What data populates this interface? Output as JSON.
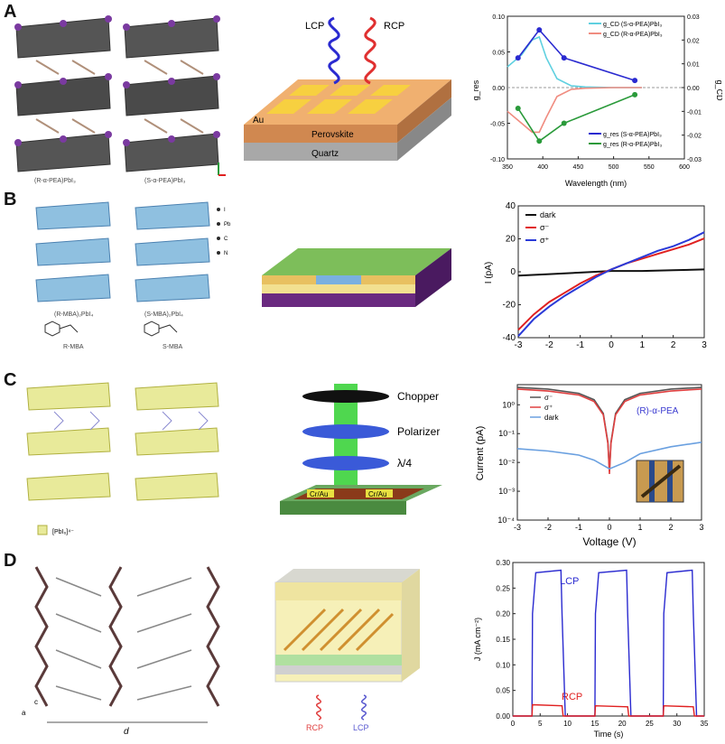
{
  "panels": {
    "A": {
      "letter": "A",
      "structure_labels": [
        "(R-α-PEA)PbI₃",
        "(S-α-PEA)PbI₃"
      ],
      "device_labels": {
        "lcp": "LCP",
        "rcp": "RCP",
        "au": "Au",
        "perovskite": "Perovskite",
        "quartz": "Quartz"
      },
      "chart": {
        "xlabel": "Wavelength (nm)",
        "ylabel_left": "g_res",
        "ylabel_right": "g_CD",
        "legend": [
          "g_CD (S-α-PEA)PbI₃",
          "g_CD (R-α-PEA)PbI₃",
          "g_res (S-α-PEA)PbI₃",
          "g_res (R-α-PEA)PbI₃"
        ],
        "xticks": [
          "350",
          "400",
          "450",
          "500",
          "550",
          "600"
        ],
        "yticks_left": [
          "-0.10",
          "-0.05",
          "0.00",
          "0.05",
          "0.10"
        ],
        "yticks_right": [
          "-0.03",
          "-0.02",
          "-0.01",
          "0.00",
          "0.01",
          "0.02",
          "0.03"
        ]
      }
    },
    "B": {
      "letter": "B",
      "structure_labels": [
        "(R-MBA)₂PbI₄",
        "(S-MBA)₂PbI₄",
        "R-MBA",
        "S-MBA"
      ],
      "legend_atoms": [
        "I",
        "Pb",
        "C",
        "N"
      ],
      "chart": {
        "ylabel": "I (pA)",
        "legend": [
          "dark",
          "σ⁻",
          "σ⁺"
        ],
        "xticks": [
          "-3",
          "-2",
          "-1",
          "0",
          "1",
          "2",
          "3"
        ],
        "yticks": [
          "-40",
          "-20",
          "0",
          "20",
          "40"
        ]
      }
    },
    "C": {
      "letter": "C",
      "structure_labels": [
        "[PbI₆]⁴⁻"
      ],
      "device_labels": {
        "chopper": "Chopper",
        "polarizer": "Polarizer",
        "qwp": "λ/4",
        "electrode": "Cr/Au"
      },
      "chart": {
        "xlabel": "Voltage (V)",
        "ylabel": "Current (pA)",
        "legend": [
          "σ⁻",
          "σ⁺",
          "dark"
        ],
        "annotation": "(R)-α-PEA",
        "xticks": [
          "-3",
          "-2",
          "-1",
          "0",
          "1",
          "2",
          "3"
        ],
        "yticks": [
          "10⁻⁴",
          "10⁻³",
          "10⁻²",
          "10⁻¹",
          "10⁰"
        ]
      }
    },
    "D": {
      "letter": "D",
      "structure_labels": [
        "d",
        "a",
        "c"
      ],
      "device_labels": {
        "rcp": "RCP",
        "lcp": "LCP"
      },
      "chart": {
        "xlabel": "Time (s)",
        "ylabel": "J (mA cm⁻²)",
        "lcp_label": "LCP",
        "rcp_label": "RCP",
        "xticks": [
          "0",
          "5",
          "10",
          "15",
          "20",
          "25",
          "30",
          "35"
        ],
        "yticks": [
          "0.00",
          "0.05",
          "0.10",
          "0.15",
          "0.20",
          "0.25",
          "0.30"
        ]
      }
    }
  },
  "chart_data": [
    {
      "type": "line",
      "xlabel": "Wavelength (nm)",
      "ylabel": "g_res / g_CD",
      "xlim": [
        350,
        600
      ],
      "ylim": [
        -0.12,
        0.12
      ],
      "series": [
        {
          "name": "g_CD (S-α-PEA)PbI₃",
          "color": "#5fd0e0",
          "x": [
            350,
            370,
            385,
            395,
            405,
            420,
            440,
            460,
            500,
            540
          ],
          "y": [
            0.035,
            0.055,
            0.08,
            0.085,
            0.05,
            0.015,
            0.003,
            0.001,
            0.0,
            0.0
          ]
        },
        {
          "name": "g_CD (R-α-PEA)PbI₃",
          "color": "#f08c80",
          "x": [
            350,
            370,
            385,
            395,
            405,
            420,
            440,
            460,
            500,
            540
          ],
          "y": [
            -0.04,
            -0.06,
            -0.075,
            -0.075,
            -0.05,
            -0.015,
            -0.003,
            -0.001,
            0.0,
            0.0
          ]
        },
        {
          "name": "g_res (S-α-PEA)PbI₃",
          "color": "#2a2ad0",
          "x": [
            365,
            395,
            430,
            530
          ],
          "y": [
            0.05,
            0.097,
            0.05,
            0.012
          ]
        },
        {
          "name": "g_res (R-α-PEA)PbI₃",
          "color": "#2a9a3a",
          "x": [
            365,
            395,
            430,
            530
          ],
          "y": [
            -0.035,
            -0.09,
            -0.06,
            -0.012
          ]
        }
      ]
    },
    {
      "type": "line",
      "xlabel": "",
      "ylabel": "I (pA)",
      "xlim": [
        -3,
        3
      ],
      "ylim": [
        -45,
        40
      ],
      "series": [
        {
          "name": "dark",
          "color": "#111111",
          "x": [
            -3,
            -2,
            -1,
            0,
            1,
            2,
            3
          ],
          "y": [
            -5,
            -4,
            -3,
            -2,
            -2,
            -1.5,
            -1
          ]
        },
        {
          "name": "σ⁻",
          "color": "#e02020",
          "x": [
            -3,
            -2.5,
            -2,
            -1.5,
            -1,
            -0.5,
            0,
            0.5,
            1,
            1.5,
            2,
            2.5,
            3
          ],
          "y": [
            -40,
            -30,
            -22,
            -16,
            -10,
            -5,
            -1,
            3,
            6,
            9,
            12,
            15,
            19
          ]
        },
        {
          "name": "σ⁺",
          "color": "#2a3ad8",
          "x": [
            -3,
            -2.5,
            -2,
            -1.5,
            -1,
            -0.5,
            0,
            0.5,
            1,
            1.5,
            2,
            2.5,
            3
          ],
          "y": [
            -44,
            -33,
            -25,
            -18,
            -12,
            -6,
            -1,
            3,
            7,
            11,
            14,
            18,
            23
          ]
        }
      ]
    },
    {
      "type": "line",
      "xlabel": "Voltage (V)",
      "ylabel": "Current (pA)",
      "xlim": [
        -3,
        3
      ],
      "ylim": [
        0.0001,
        5
      ],
      "log_y": true,
      "series": [
        {
          "name": "σ⁻",
          "color": "#555555",
          "x": [
            -3,
            -2,
            -1,
            -0.5,
            -0.2,
            -0.05,
            0,
            0.05,
            0.2,
            0.5,
            1,
            2,
            3
          ],
          "y": [
            4,
            3.5,
            2.5,
            1.5,
            0.5,
            0.05,
            0.005,
            0.05,
            0.5,
            1.5,
            2.5,
            3.5,
            4
          ]
        },
        {
          "name": "σ⁺",
          "color": "#e04040",
          "x": [
            -3,
            -2,
            -1,
            -0.5,
            -0.2,
            -0.05,
            0,
            0.05,
            0.2,
            0.5,
            1,
            2,
            3
          ],
          "y": [
            3.5,
            3,
            2.2,
            1.3,
            0.45,
            0.045,
            0.004,
            0.045,
            0.45,
            1.3,
            2.2,
            3,
            3.5
          ]
        },
        {
          "name": "dark",
          "color": "#6aa0e0",
          "x": [
            -3,
            -2,
            -1,
            -0.5,
            0,
            0.5,
            1,
            2,
            3
          ],
          "y": [
            0.03,
            0.025,
            0.018,
            0.012,
            0.006,
            0.01,
            0.02,
            0.035,
            0.05
          ]
        }
      ]
    },
    {
      "type": "line",
      "xlabel": "Time (s)",
      "ylabel": "J (mA cm⁻²)",
      "xlim": [
        0,
        35
      ],
      "ylim": [
        0,
        0.3
      ],
      "series": [
        {
          "name": "LCP",
          "color": "#2a2ad0",
          "x": [
            0,
            3.5,
            3.6,
            4.2,
            8.8,
            9.0,
            9.6,
            15,
            15.1,
            15.7,
            20.8,
            21.0,
            21.6,
            27.5,
            27.6,
            28.2,
            32.8,
            33.0,
            33.6,
            35
          ],
          "y": [
            0.0,
            0.0,
            0.2,
            0.28,
            0.285,
            0.2,
            0.0,
            0.0,
            0.2,
            0.28,
            0.285,
            0.2,
            0.0,
            0.0,
            0.2,
            0.28,
            0.285,
            0.2,
            0.0,
            0.0
          ]
        },
        {
          "name": "RCP",
          "color": "#e02020",
          "x": [
            0,
            3.5,
            3.6,
            9.0,
            9.2,
            15,
            15.1,
            21.0,
            21.2,
            27.5,
            27.6,
            33.0,
            33.2,
            35
          ],
          "y": [
            0.0,
            0.0,
            0.022,
            0.02,
            0.0,
            0.0,
            0.02,
            0.018,
            0.0,
            0.0,
            0.02,
            0.018,
            0.0,
            0.0
          ]
        }
      ]
    }
  ]
}
